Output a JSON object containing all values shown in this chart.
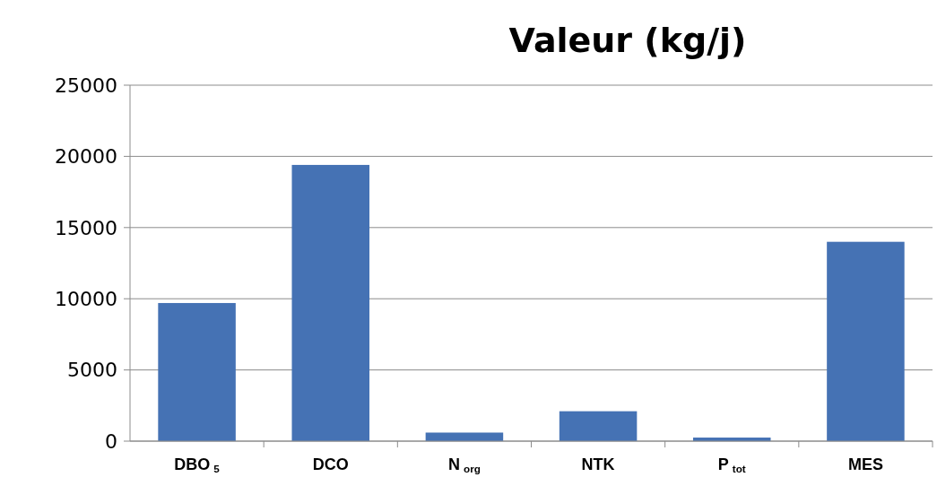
{
  "chart_data": {
    "type": "bar",
    "title": "Valeur (kg/j)",
    "categories": [
      "DBO$_{5}$",
      "DCO",
      "N$_{org}$",
      "NTK",
      "P$_{tot}$",
      "MES"
    ],
    "values": [
      9700,
      19400,
      600,
      2100,
      250,
      14000
    ],
    "color": "#4572b4",
    "ylim": [
      0,
      25000
    ],
    "yticks": [
      0,
      5000,
      10000,
      15000,
      20000,
      25000
    ],
    "grid": "y"
  }
}
